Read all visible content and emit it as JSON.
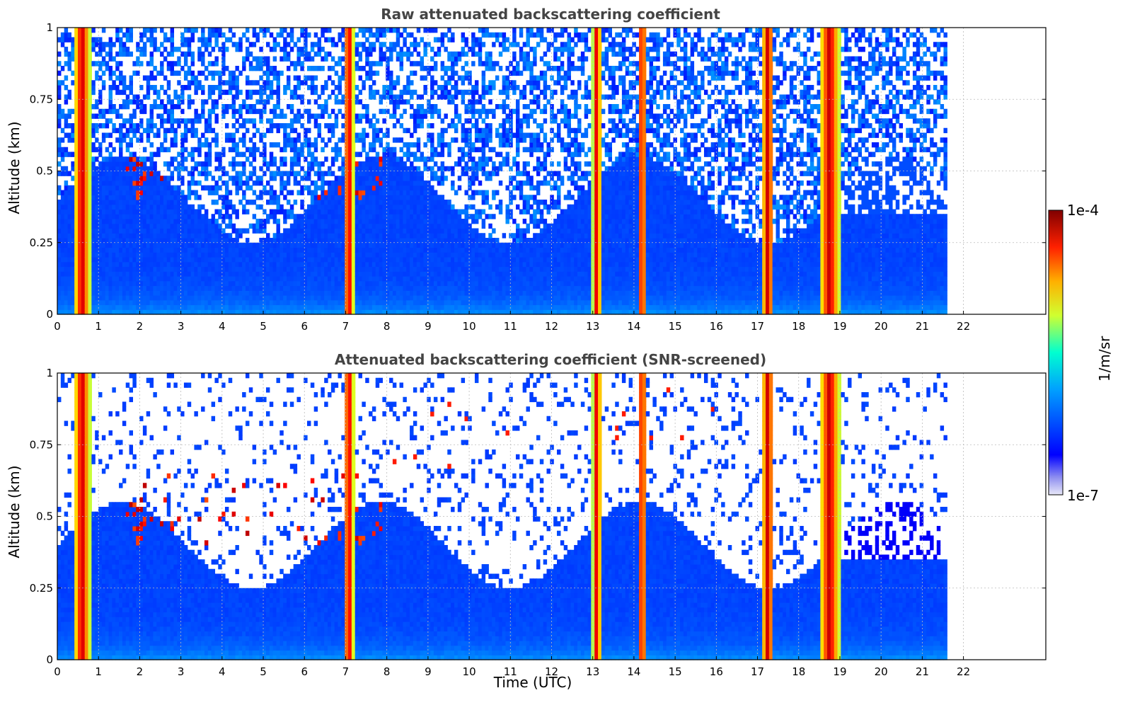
{
  "chart_data": [
    {
      "type": "heatmap",
      "title": "Raw attenuated backscattering coefficient",
      "xlabel": "",
      "ylabel": "Altitude (km)",
      "xlim": [
        0,
        24
      ],
      "ylim": [
        0,
        1
      ],
      "xticks": [
        0,
        1,
        2,
        3,
        4,
        5,
        6,
        7,
        8,
        9,
        10,
        11,
        12,
        13,
        14,
        15,
        16,
        17,
        18,
        19,
        20,
        21,
        22
      ],
      "yticks": [
        0,
        0.25,
        0.5,
        0.75,
        1
      ],
      "ytick_labels": [
        "0",
        "0.25",
        "0.5",
        "0.75",
        "1"
      ],
      "data_end_hour": 21.6,
      "grid": true,
      "colorbar": "shared",
      "features": {
        "dense_columns_hours": [
          [
            0.4,
            0.8
          ],
          [
            6.95,
            7.2
          ],
          [
            13.0,
            13.2
          ],
          [
            14.1,
            14.3
          ],
          [
            17.1,
            17.4
          ],
          [
            18.5,
            19.0
          ]
        ],
        "cloud_layer_altitude_km": [
          0.4,
          0.65
        ],
        "noise_above_km": 0.4
      }
    },
    {
      "type": "heatmap",
      "title": "Attenuated backscattering coefficient (SNR-screened)",
      "xlabel": "Time (UTC)",
      "ylabel": "Altitude (km)",
      "xlim": [
        0,
        24
      ],
      "ylim": [
        0,
        1
      ],
      "xticks": [
        0,
        1,
        2,
        3,
        4,
        5,
        6,
        7,
        8,
        9,
        10,
        11,
        12,
        13,
        14,
        15,
        16,
        17,
        18,
        19,
        20,
        21,
        22
      ],
      "yticks": [
        0,
        0.25,
        0.5,
        0.75,
        1
      ],
      "ytick_labels": [
        "0",
        "0.25",
        "0.5",
        "0.75",
        "1"
      ],
      "data_end_hour": 21.6,
      "grid": true,
      "colorbar": "shared",
      "features": {
        "screened_out": "low-SNR regions shown white"
      }
    }
  ],
  "colorbar": {
    "label": "1/m/sr",
    "min_label": "1e-7",
    "max_label": "1e-4",
    "scale": "log",
    "range": [
      1e-07,
      0.0001
    ],
    "colormap": "jet"
  },
  "colors": {
    "title": "#444444",
    "grid": "#bbbbbb",
    "low": "#0a28f5",
    "high": "#8b0000"
  }
}
